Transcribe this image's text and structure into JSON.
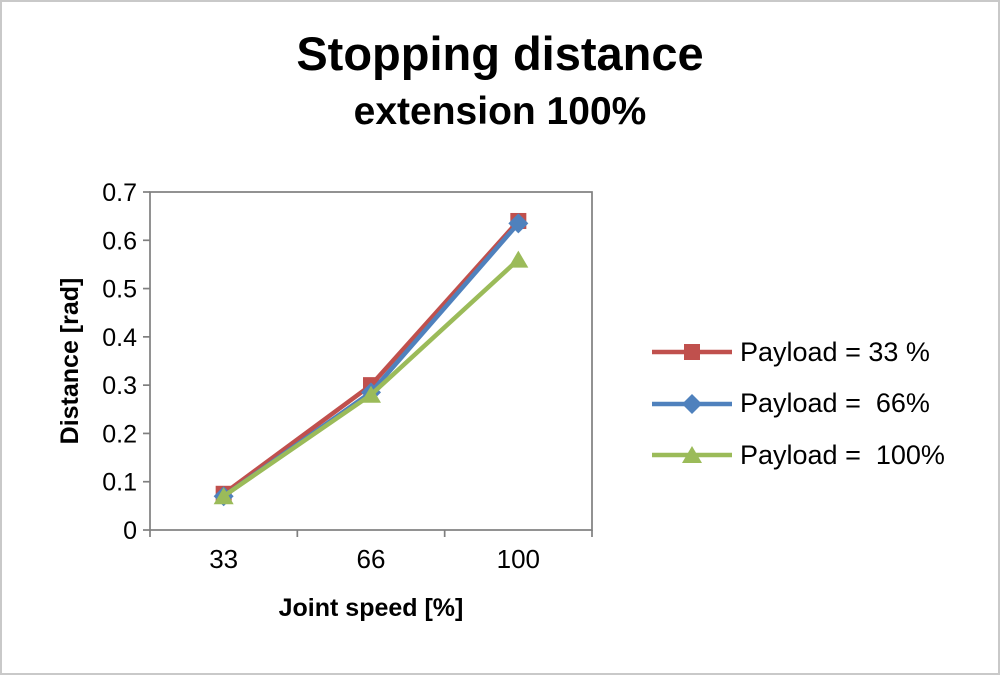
{
  "chart_data": {
    "type": "line",
    "title": "Stopping distance",
    "subtitle": "extension 100%",
    "xlabel": "Joint speed [%]",
    "ylabel": "Distance [rad]",
    "categories": [
      "33",
      "66",
      "100"
    ],
    "ylim": [
      0,
      0.7
    ],
    "ytick_step": 0.1,
    "yticks": [
      "0",
      "0.1",
      "0.2",
      "0.3",
      "0.4",
      "0.5",
      "0.6",
      "0.7"
    ],
    "grid": false,
    "legend_position": "right",
    "axis_color": "#7f7f7f",
    "background_color": "#ffffff",
    "border_color": "#c9c9c9",
    "series": [
      {
        "name": "Payload = 33 %",
        "color": "#c0504d",
        "marker": "square",
        "values": [
          0.075,
          0.3,
          0.64
        ]
      },
      {
        "name": "Payload =  66%",
        "color": "#4f81bd",
        "marker": "diamond",
        "values": [
          0.07,
          0.285,
          0.635
        ]
      },
      {
        "name": "Payload =  100%",
        "color": "#9bbb59",
        "marker": "triangle",
        "values": [
          0.07,
          0.28,
          0.56
        ]
      }
    ]
  }
}
